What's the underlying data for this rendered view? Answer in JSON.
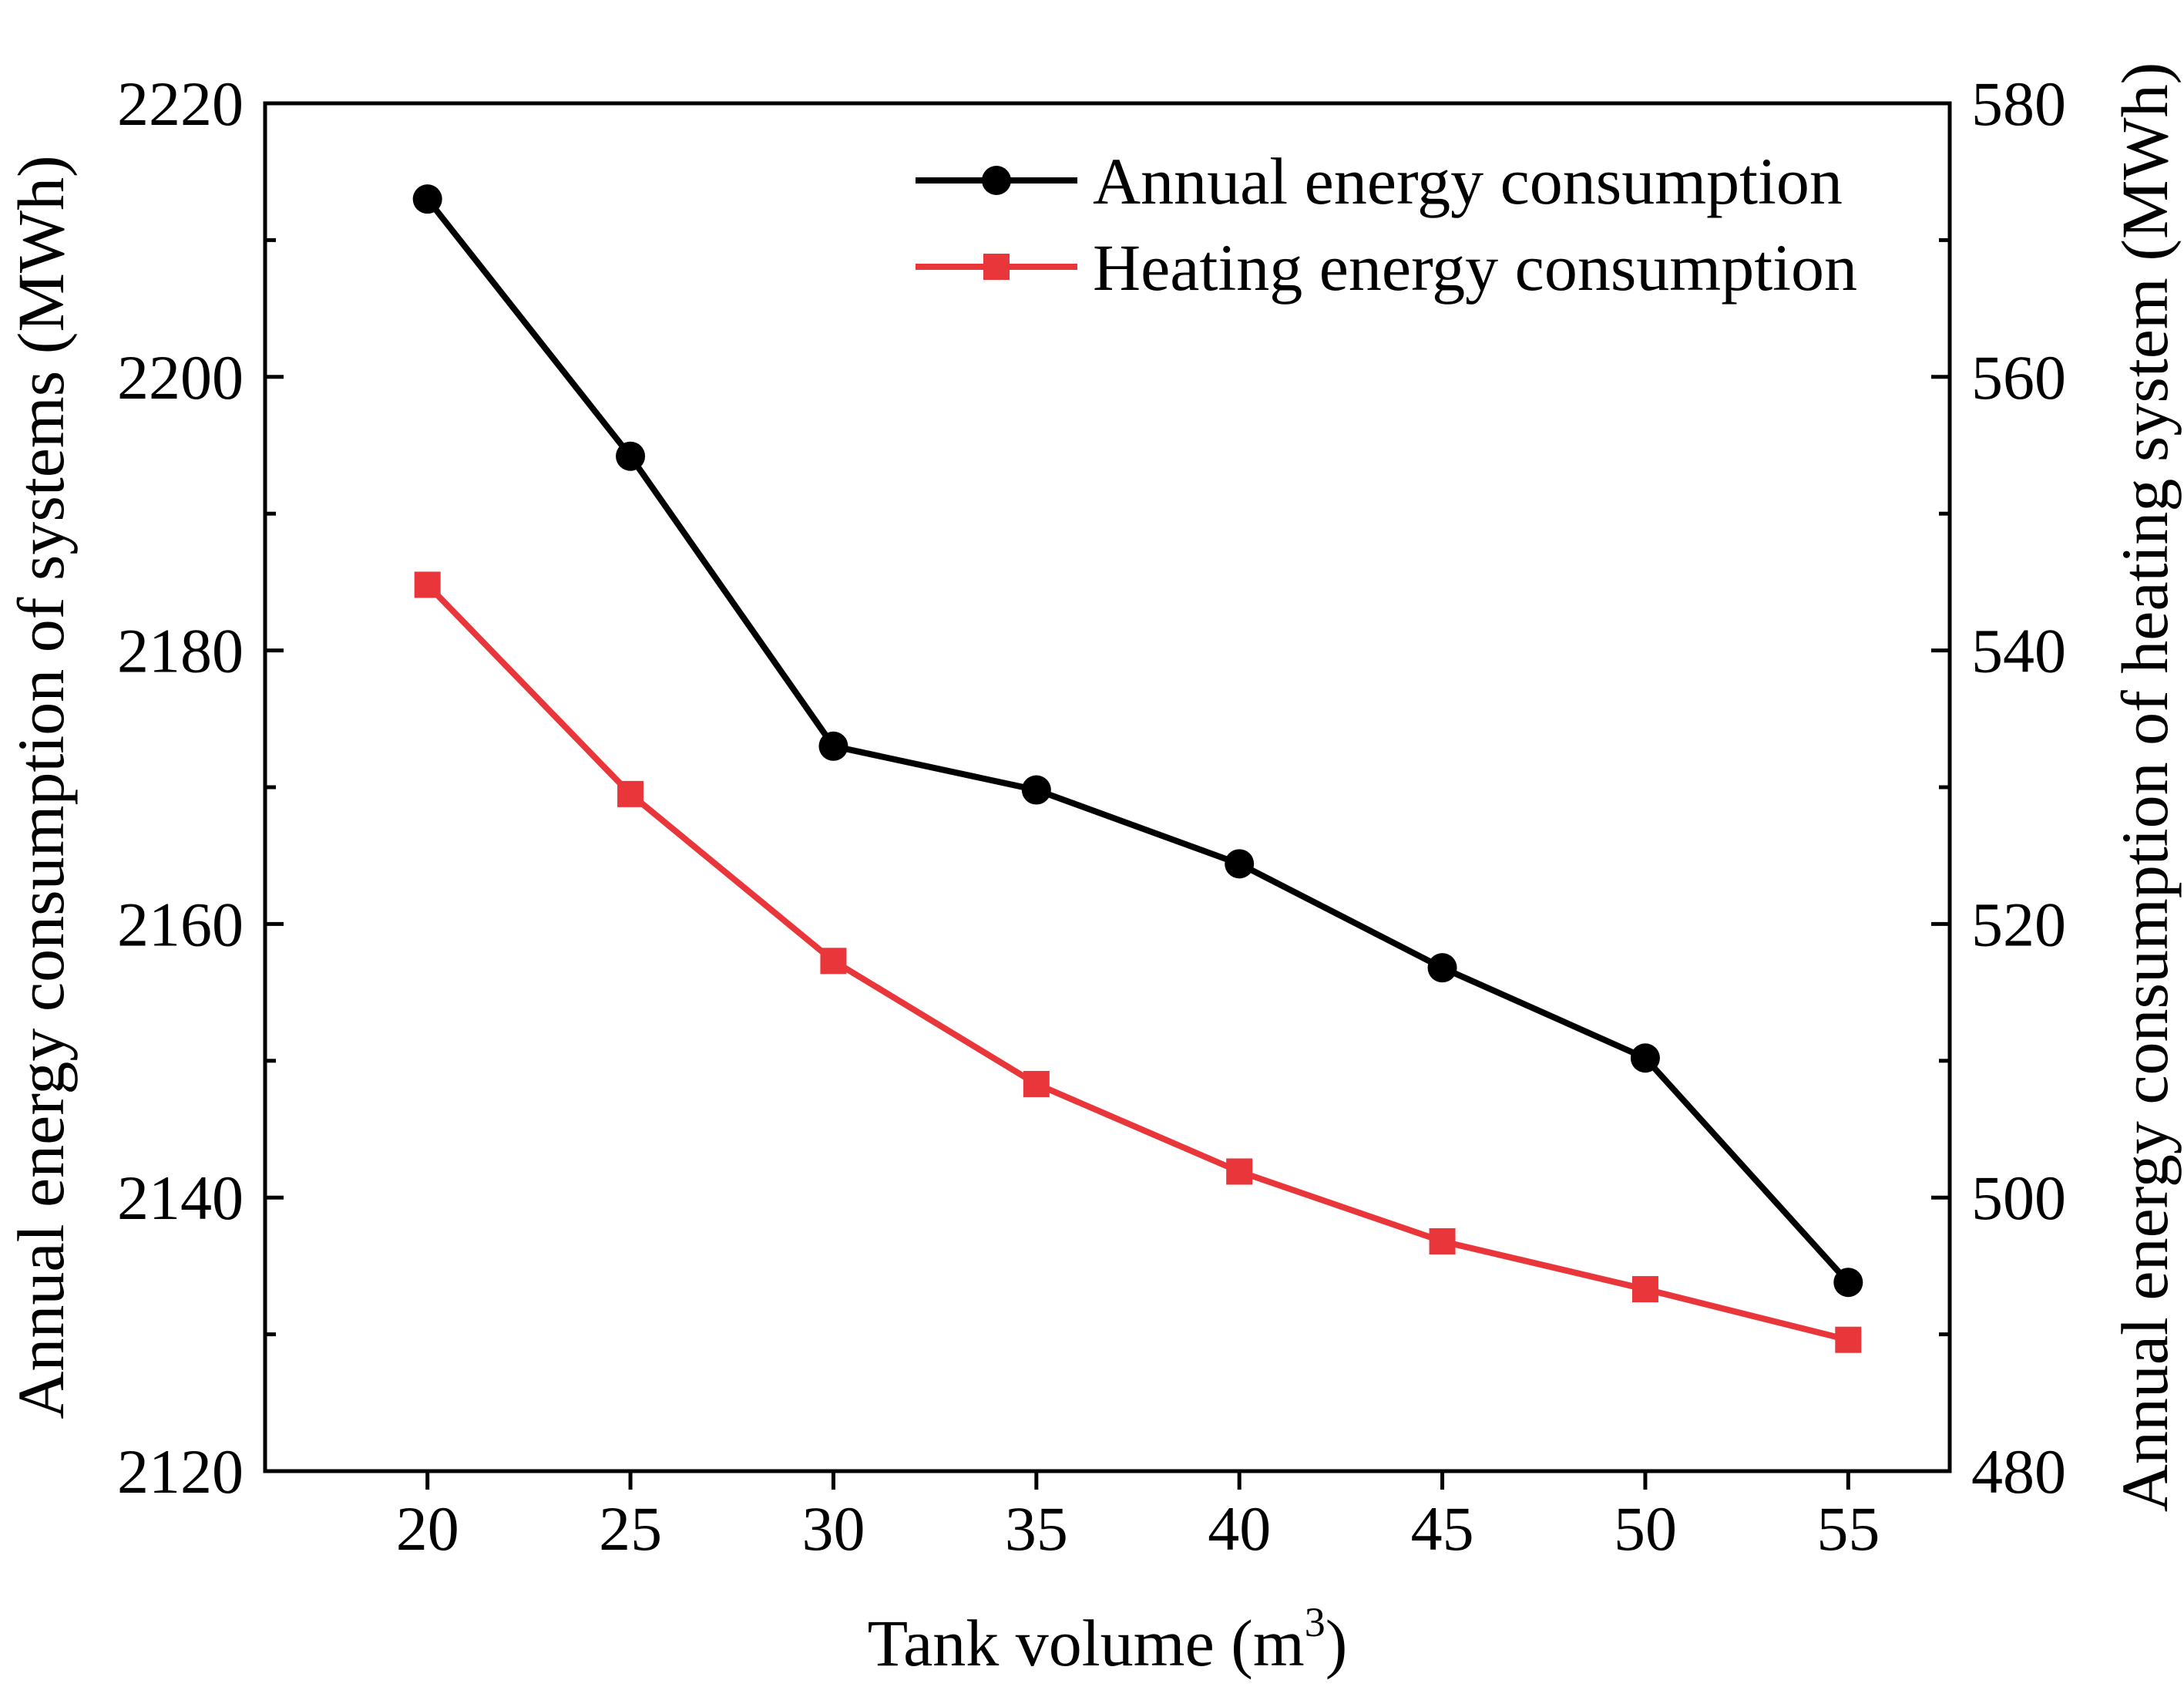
{
  "chart_data": {
    "type": "line",
    "title": "",
    "xlabel": "Tank volume (m",
    "xlabel_superscript": "3",
    "xlabel_suffix": ")",
    "ylabel_left": "Annual energy consumption of systems (MWh)",
    "ylabel_right": "Annual energy consumption of heating system (MWh)",
    "x": [
      20,
      25,
      30,
      35,
      40,
      45,
      50,
      55
    ],
    "x_tick_labels": [
      "20",
      "25",
      "30",
      "35",
      "40",
      "45",
      "50",
      "55"
    ],
    "xlim": [
      16,
      57.5
    ],
    "ylim_left": [
      2120,
      2220
    ],
    "yticks_left": [
      "2120",
      "2140",
      "2160",
      "2180",
      "2200",
      "2220"
    ],
    "ylim_right": [
      480,
      580
    ],
    "yticks_right": [
      "480",
      "500",
      "520",
      "540",
      "560",
      "580"
    ],
    "legend_position": "top-right",
    "series": [
      {
        "name": "Annual energy consumption",
        "axis": "left",
        "color": "#000000",
        "marker": "circle",
        "values": [
          2213.0,
          2194.2,
          2173.0,
          2169.8,
          2164.4,
          2156.8,
          2150.2,
          2133.8
        ]
      },
      {
        "name": "Heating energy consumption",
        "axis": "right",
        "color": "#e8363a",
        "marker": "square",
        "values": [
          544.8,
          529.5,
          517.3,
          508.3,
          501.9,
          496.8,
          493.3,
          489.6
        ]
      }
    ]
  }
}
